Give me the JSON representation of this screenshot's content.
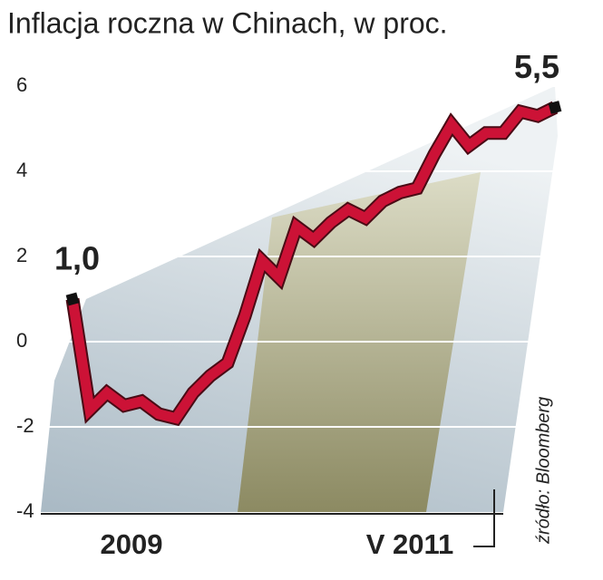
{
  "chart_data": {
    "type": "line",
    "title": "Inflacja roczna w Chinach, w proc.",
    "source": "źródło: Bloomberg",
    "categories": [
      null,
      null,
      null,
      "2009",
      null,
      null,
      null,
      null,
      null,
      null,
      null,
      null,
      null,
      null,
      null,
      null,
      null,
      null,
      null,
      null,
      null,
      null,
      null,
      null,
      null,
      null,
      null,
      null,
      "V 2011"
    ],
    "series": [
      {
        "color": "#cc1236",
        "values": [
          1.0,
          -1.6,
          -1.2,
          -1.5,
          -1.4,
          -1.7,
          -1.8,
          -1.2,
          -0.8,
          -0.5,
          0.6,
          1.9,
          1.5,
          2.7,
          2.4,
          2.8,
          3.1,
          2.9,
          3.3,
          3.5,
          3.6,
          4.4,
          5.1,
          4.6,
          4.9,
          4.9,
          5.4,
          5.3,
          5.5
        ],
        "value_labels": [
          "1,0",
          null,
          null,
          null,
          null,
          null,
          null,
          null,
          null,
          null,
          null,
          null,
          null,
          null,
          null,
          null,
          null,
          null,
          null,
          null,
          null,
          null,
          null,
          null,
          null,
          null,
          null,
          null,
          "5,5"
        ]
      }
    ],
    "ylim": [
      -4,
      6
    ],
    "yticks": [
      -4,
      -2,
      0,
      2,
      4,
      6
    ],
    "grid": true
  }
}
